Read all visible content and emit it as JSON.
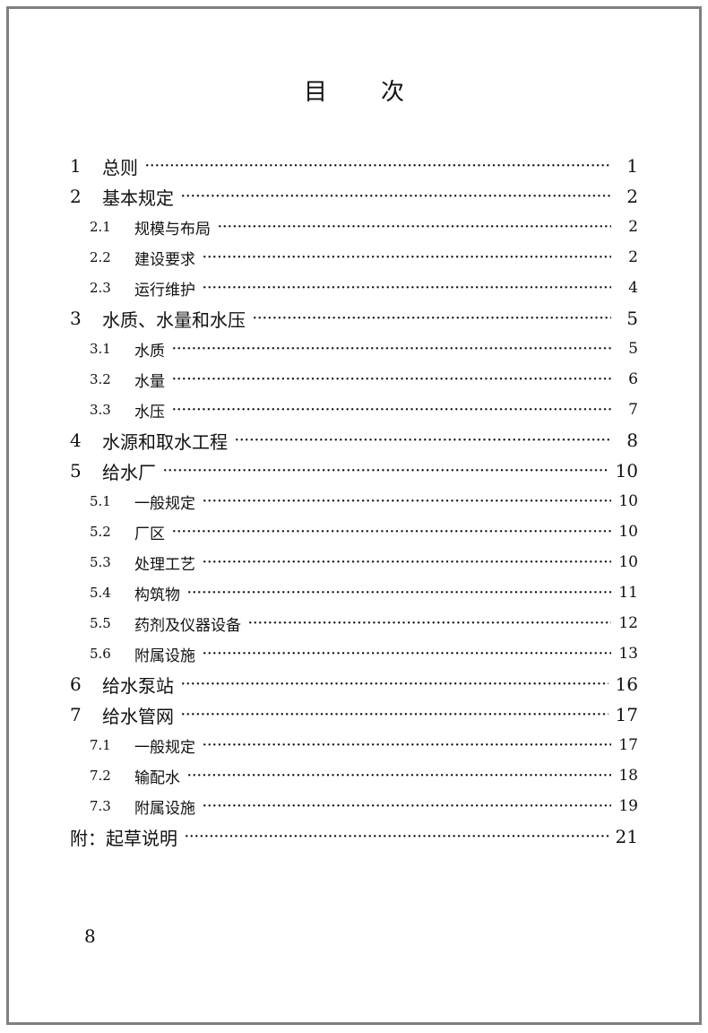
{
  "title": [
    "目",
    "次"
  ],
  "entries": [
    {
      "num": "1",
      "title": "总则",
      "page": "1",
      "level": 1
    },
    {
      "num": "2",
      "title": "基本规定",
      "page": "2",
      "level": 1
    },
    {
      "num": "2.1",
      "title": "规模与布局",
      "page": "2",
      "level": 2
    },
    {
      "num": "2.2",
      "title": "建设要求",
      "page": "2",
      "level": 2
    },
    {
      "num": "2.3",
      "title": "运行维护",
      "page": "4",
      "level": 2
    },
    {
      "num": "3",
      "title": "水质、水量和水压",
      "page": "5",
      "level": 1
    },
    {
      "num": "3.1",
      "title": "水质",
      "page": "5",
      "level": 2
    },
    {
      "num": "3.2",
      "title": "水量",
      "page": "6",
      "level": 2
    },
    {
      "num": "3.3",
      "title": "水压",
      "page": "7",
      "level": 2
    },
    {
      "num": "4",
      "title": "水源和取水工程",
      "page": "8",
      "level": 1
    },
    {
      "num": "5",
      "title": "给水厂",
      "page": "10",
      "level": 1
    },
    {
      "num": "5.1",
      "title": "一般规定",
      "page": "10",
      "level": 2
    },
    {
      "num": "5.2",
      "title": "厂区",
      "page": "10",
      "level": 2
    },
    {
      "num": "5.3",
      "title": "处理工艺",
      "page": "10",
      "level": 2
    },
    {
      "num": "5.4",
      "title": "构筑物",
      "page": "11",
      "level": 2
    },
    {
      "num": "5.5",
      "title": "药剂及仪器设备",
      "page": "12",
      "level": 2
    },
    {
      "num": "5.6",
      "title": "附属设施",
      "page": "13",
      "level": 2
    },
    {
      "num": "6",
      "title": "给水泵站",
      "page": "16",
      "level": 1
    },
    {
      "num": "7",
      "title": "给水管网",
      "page": "17",
      "level": 1
    },
    {
      "num": "7.1",
      "title": "一般规定",
      "page": "17",
      "level": 2
    },
    {
      "num": "7.2",
      "title": "输配水",
      "page": "18",
      "level": 2
    },
    {
      "num": "7.3",
      "title": "附属设施",
      "page": "19",
      "level": 2
    },
    {
      "num": "",
      "title": "附：起草说明",
      "page": "21",
      "level": 1
    }
  ],
  "page_number": "8"
}
